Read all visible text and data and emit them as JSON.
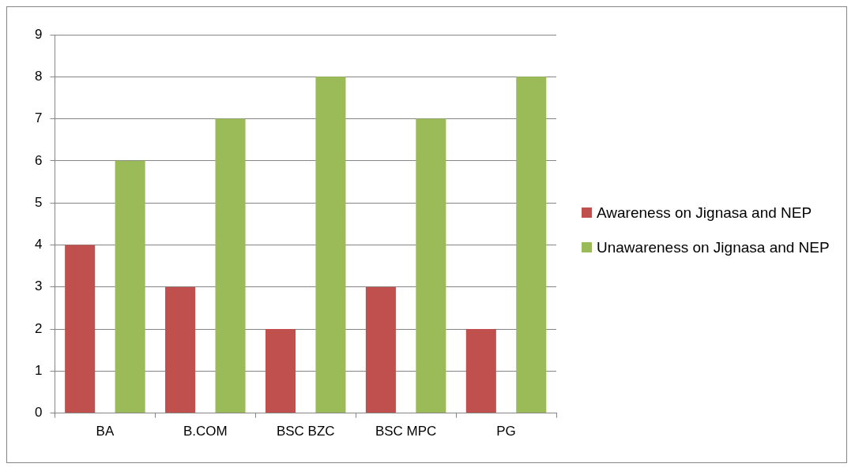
{
  "chart_data": {
    "type": "bar",
    "categories": [
      "BA",
      "B.COM",
      "BSC BZC",
      "BSC MPC",
      "PG"
    ],
    "series": [
      {
        "name": "Awareness on Jignasa and NEP",
        "color": "#c0504d",
        "values": [
          4,
          3,
          2,
          3,
          2
        ]
      },
      {
        "name": "Unawareness on Jignasa and NEP",
        "color": "#9bbb59",
        "values": [
          6,
          7,
          8,
          7,
          8
        ]
      }
    ],
    "ylim": [
      0,
      9
    ],
    "yticks": [
      0,
      1,
      2,
      3,
      4,
      5,
      6,
      7,
      8,
      9
    ],
    "grid": "y",
    "legend": "right"
  }
}
